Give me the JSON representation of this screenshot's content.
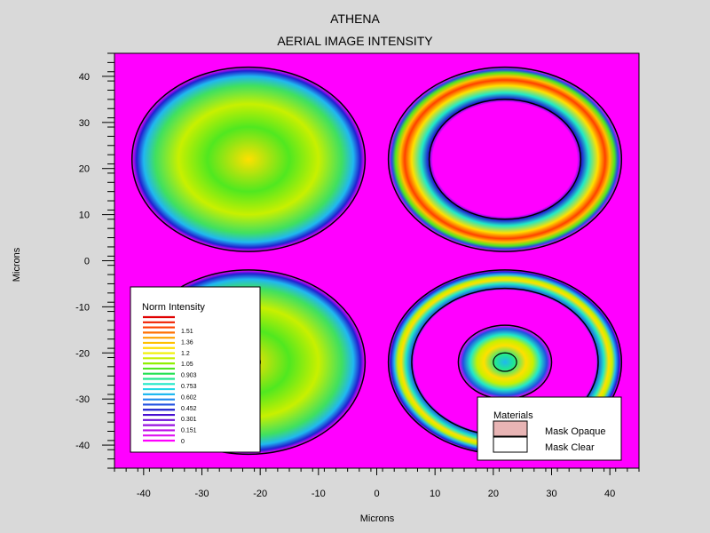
{
  "chart_data": {
    "type": "heatmap",
    "title": "ATHENA",
    "subtitle": "AERIAL IMAGE INTENSITY",
    "xlabel": "Microns",
    "ylabel": "Microns",
    "xlim": [
      -45,
      45
    ],
    "ylim": [
      -45,
      45
    ],
    "x_ticks": [
      -40,
      -30,
      -20,
      -10,
      0,
      10,
      20,
      30,
      40
    ],
    "y_ticks": [
      40,
      30,
      20,
      10,
      0,
      -10,
      -20,
      -30,
      -40
    ],
    "features": [
      {
        "cx": -22,
        "cy": 22,
        "r_outer": 20,
        "r_inner": 0,
        "peak": 1.2,
        "kind": "disk"
      },
      {
        "cx": 22,
        "cy": 22,
        "r_outer": 20,
        "r_inner": 13,
        "peak": 1.45,
        "kind": "ring"
      },
      {
        "cx": -22,
        "cy": -22,
        "r_outer": 20,
        "r_inner": 2,
        "peak": 1.2,
        "kind": "disk"
      },
      {
        "cx": 22,
        "cy": -22,
        "r_outer": 20,
        "r_inner": 16,
        "peak": 1.2,
        "kind": "ring"
      },
      {
        "cx": 22,
        "cy": -22,
        "r_outer": 8,
        "r_inner": 0,
        "peak": 1.05,
        "kind": "disk"
      }
    ]
  },
  "legend": {
    "title": "Norm Intensity",
    "labels": [
      "1.51",
      "1.36",
      "1.2",
      "1.05",
      "0.903",
      "0.753",
      "0.602",
      "0.452",
      "0.301",
      "0.151",
      "0"
    ],
    "colors": [
      "#e00000",
      "#f02000",
      "#ff4000",
      "#ff7000",
      "#ffa000",
      "#ffc000",
      "#ffe000",
      "#f0f000",
      "#c8f000",
      "#90f000",
      "#50e820",
      "#20e050",
      "#20e890",
      "#20e8c8",
      "#20d8e8",
      "#20b8f0",
      "#2088f0",
      "#2050e0",
      "#2020d0",
      "#4810d0",
      "#7010d8",
      "#9810e0",
      "#c010e8",
      "#e010f0",
      "#ff00ff"
    ]
  },
  "materials_legend": {
    "title": "Materials",
    "items": [
      {
        "label": "Mask Opaque",
        "color": "#e8b4b4"
      },
      {
        "label": "Mask Clear",
        "color": "#ffffff"
      }
    ]
  },
  "colors": {
    "background": "#d9d9d9",
    "field": "#ff00ff",
    "contour": "#000000"
  }
}
